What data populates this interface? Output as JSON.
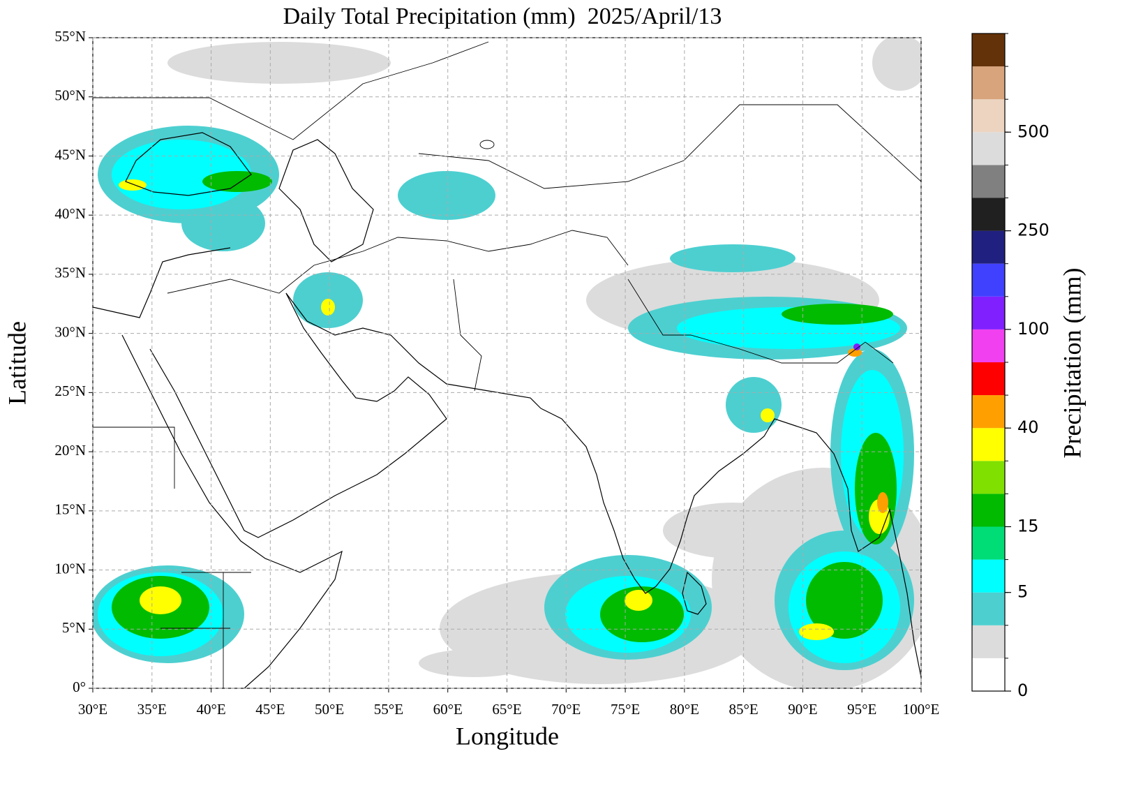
{
  "map": {
    "title": "Daily Total Precipitation (mm)  2025/April/13",
    "x_label": "Longitude",
    "y_label": "Latitude",
    "xlim": [
      30,
      100
    ],
    "ylim": [
      0,
      55
    ],
    "xticks": [
      {
        "value": 30,
        "label": "30°E"
      },
      {
        "value": 35,
        "label": "35°E"
      },
      {
        "value": 40,
        "label": "40°E"
      },
      {
        "value": 45,
        "label": "45°E"
      },
      {
        "value": 50,
        "label": "50°E"
      },
      {
        "value": 55,
        "label": "55°E"
      },
      {
        "value": 60,
        "label": "60°E"
      },
      {
        "value": 65,
        "label": "65°E"
      },
      {
        "value": 70,
        "label": "70°E"
      },
      {
        "value": 75,
        "label": "75°E"
      },
      {
        "value": 80,
        "label": "80°E"
      },
      {
        "value": 85,
        "label": "85°E"
      },
      {
        "value": 90,
        "label": "90°E"
      },
      {
        "value": 95,
        "label": "95°E"
      },
      {
        "value": 100,
        "label": "100°E"
      }
    ],
    "yticks": [
      {
        "value": 0,
        "label": "0°"
      },
      {
        "value": 5,
        "label": "5°N"
      },
      {
        "value": 10,
        "label": "10°N"
      },
      {
        "value": 15,
        "label": "15°N"
      },
      {
        "value": 20,
        "label": "20°N"
      },
      {
        "value": 25,
        "label": "25°N"
      },
      {
        "value": 30,
        "label": "30°N"
      },
      {
        "value": 35,
        "label": "35°N"
      },
      {
        "value": 40,
        "label": "40°N"
      },
      {
        "value": 45,
        "label": "45°N"
      },
      {
        "value": 50,
        "label": "50°N"
      },
      {
        "value": 55,
        "label": "55°N"
      }
    ],
    "grid": true,
    "colorbar": {
      "label": "Precipitation (mm)",
      "colors": [
        "#ffffff",
        "#dcdcdc",
        "#4dcfd0",
        "#00ffff",
        "#00dd77",
        "#00bb00",
        "#80e000",
        "#ffff00",
        "#ffa000",
        "#ff0000",
        "#f040f0",
        "#8020ff",
        "#4040ff",
        "#202080",
        "#202020",
        "#808080",
        "#dcdcdc",
        "#ecd4c0",
        "#d8a47c",
        "#643208"
      ],
      "ticks": [
        0,
        5,
        15,
        40,
        100,
        250,
        500
      ]
    }
  }
}
